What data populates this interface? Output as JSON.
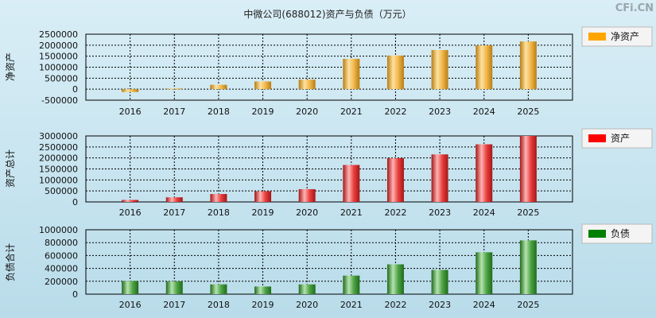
{
  "title": "中微公司(688012)资产与负债（万元）",
  "watermark": "CFi.CN",
  "chart_data": [
    {
      "type": "bar",
      "id": "equity",
      "ylabel": "净资产",
      "legend": "净资产",
      "color_light": "#fde1a0",
      "color_mid": "#f2b84d",
      "color_dark": "#b97d12",
      "legend_color": "#ffa500",
      "categories": [
        "2016",
        "2017",
        "2018",
        "2019",
        "2020",
        "2021",
        "2022",
        "2023",
        "2024",
        "2025"
      ],
      "values": [
        -130000,
        30000,
        200000,
        350000,
        430000,
        1380000,
        1530000,
        1780000,
        1990000,
        2170000
      ],
      "ylim": [
        -500000,
        2500000
      ],
      "yticks": [
        -500000,
        0,
        500000,
        1000000,
        1500000,
        2000000,
        2500000
      ],
      "ytick_labels": [
        "-500000",
        "0",
        "500000",
        "1000000",
        "1500000",
        "2000000",
        "2500000"
      ]
    },
    {
      "type": "bar",
      "id": "assets",
      "ylabel": "资产总计",
      "legend": "资产",
      "color_light": "#ffb3b3",
      "color_mid": "#e8403f",
      "color_dark": "#a51616",
      "legend_color": "#ff0000",
      "categories": [
        "2016",
        "2017",
        "2018",
        "2019",
        "2020",
        "2021",
        "2022",
        "2023",
        "2024",
        "2025"
      ],
      "values": [
        90000,
        210000,
        360000,
        490000,
        580000,
        1680000,
        1990000,
        2160000,
        2620000,
        3000000
      ],
      "ylim": [
        0,
        3000000
      ],
      "yticks": [
        0,
        500000,
        1000000,
        1500000,
        2000000,
        2500000,
        3000000
      ],
      "ytick_labels": [
        "0",
        "500000",
        "1000000",
        "1500000",
        "2000000",
        "2500000",
        "3000000"
      ]
    },
    {
      "type": "bar",
      "id": "liabilities",
      "ylabel": "负债合计",
      "legend": "负债",
      "color_light": "#b6e3b0",
      "color_mid": "#4fa446",
      "color_dark": "#1f6b1a",
      "legend_color": "#008000",
      "categories": [
        "2016",
        "2017",
        "2018",
        "2019",
        "2020",
        "2021",
        "2022",
        "2023",
        "2024",
        "2025"
      ],
      "values": [
        205000,
        200000,
        152000,
        118000,
        152000,
        288000,
        463000,
        376000,
        650000,
        835000
      ],
      "ylim": [
        0,
        1000000
      ],
      "yticks": [
        0,
        200000,
        400000,
        600000,
        800000,
        1000000
      ],
      "ytick_labels": [
        "0",
        "200000",
        "400000",
        "600000",
        "800000",
        "1000000"
      ]
    }
  ]
}
